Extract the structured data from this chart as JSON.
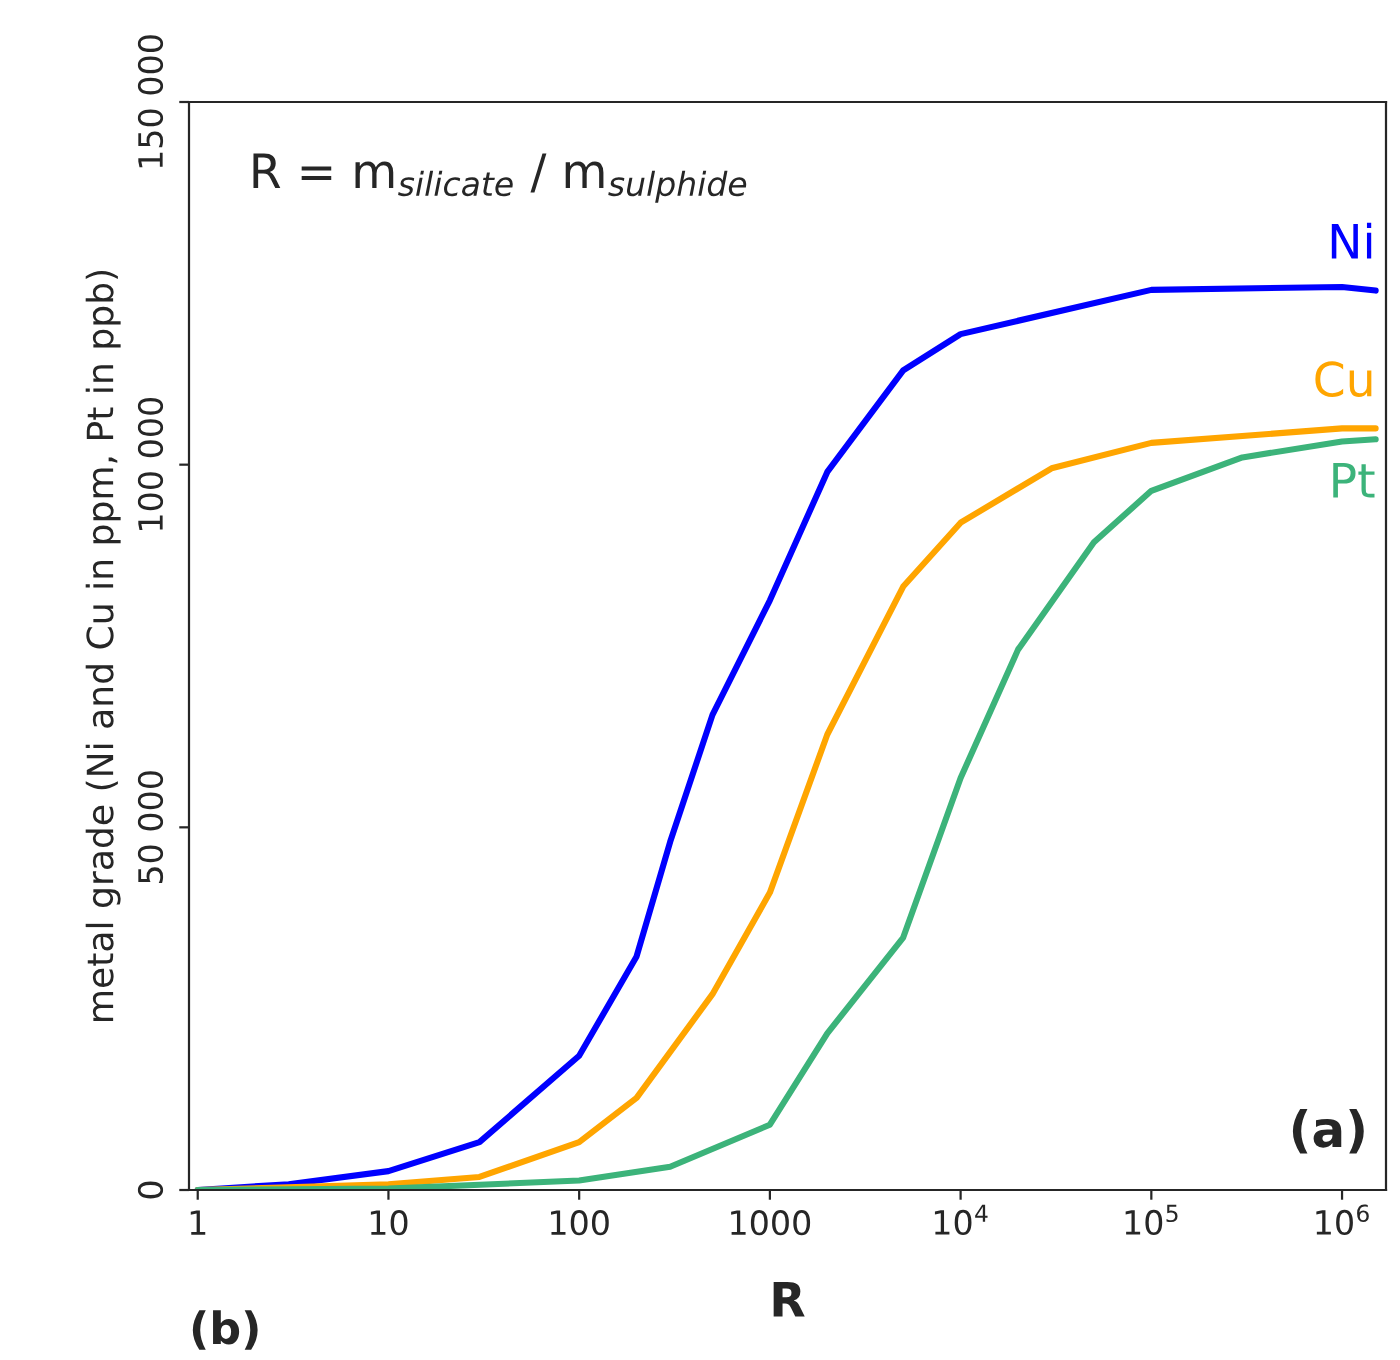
{
  "chart_data": {
    "type": "line",
    "xlabel": "R",
    "ylabel": "metal grade (Ni and Cu in ppm, Pt in ppb)",
    "annotations": [
      "R = m$_{silicate}$ / m$_{sulphide}$",
      "(a)",
      "(b)"
    ],
    "log": "x",
    "grid": false,
    "legend": false,
    "marker": "none",
    "line_style": "solid",
    "xlim": [
      0.9,
      1700000
    ],
    "ylim": [
      0,
      150000
    ],
    "xticks": [
      1,
      10,
      100,
      1000,
      {
        "value": 10000,
        "label": "10$^{4}$"
      },
      {
        "value": 100000,
        "label": "10$^{5}$"
      },
      {
        "value": 1000000,
        "label": "10$^{6}$"
      }
    ],
    "yticks": [
      0,
      {
        "value": 50000,
        "label": "50 000"
      },
      {
        "value": 100000,
        "label": "100 000"
      },
      {
        "value": 150000,
        "label": "150 000"
      }
    ],
    "series": [
      {
        "name": "Ni",
        "color": "#0000ff",
        "x": [
          1,
          3,
          10,
          30,
          100,
          200,
          300,
          500,
          1000,
          2000,
          5000,
          10000,
          100000,
          1000000,
          1500000
        ],
        "values": [
          0,
          800,
          2600,
          6600,
          18500,
          32200,
          48000,
          65500,
          81300,
          99000,
          113000,
          118000,
          124100,
          124500,
          124000
        ]
      },
      {
        "name": "Cu",
        "color": "#ffa500",
        "x": [
          1,
          10,
          30,
          100,
          200,
          500,
          1000,
          2000,
          5000,
          10000,
          30000,
          100000,
          1000000,
          1500000
        ],
        "values": [
          0,
          800,
          1800,
          6600,
          12700,
          27000,
          41000,
          62800,
          83200,
          92000,
          99500,
          103000,
          105000,
          105000
        ]
      },
      {
        "name": "Pt",
        "color": "#3cb37a",
        "x": [
          1,
          10,
          100,
          300,
          1000,
          2000,
          5000,
          10000,
          20000,
          50000,
          100000,
          300000,
          1000000,
          1500000
        ],
        "values": [
          0,
          200,
          1300,
          3200,
          9000,
          21600,
          34800,
          56800,
          74500,
          89300,
          96400,
          101000,
          103200,
          103500
        ]
      }
    ]
  }
}
